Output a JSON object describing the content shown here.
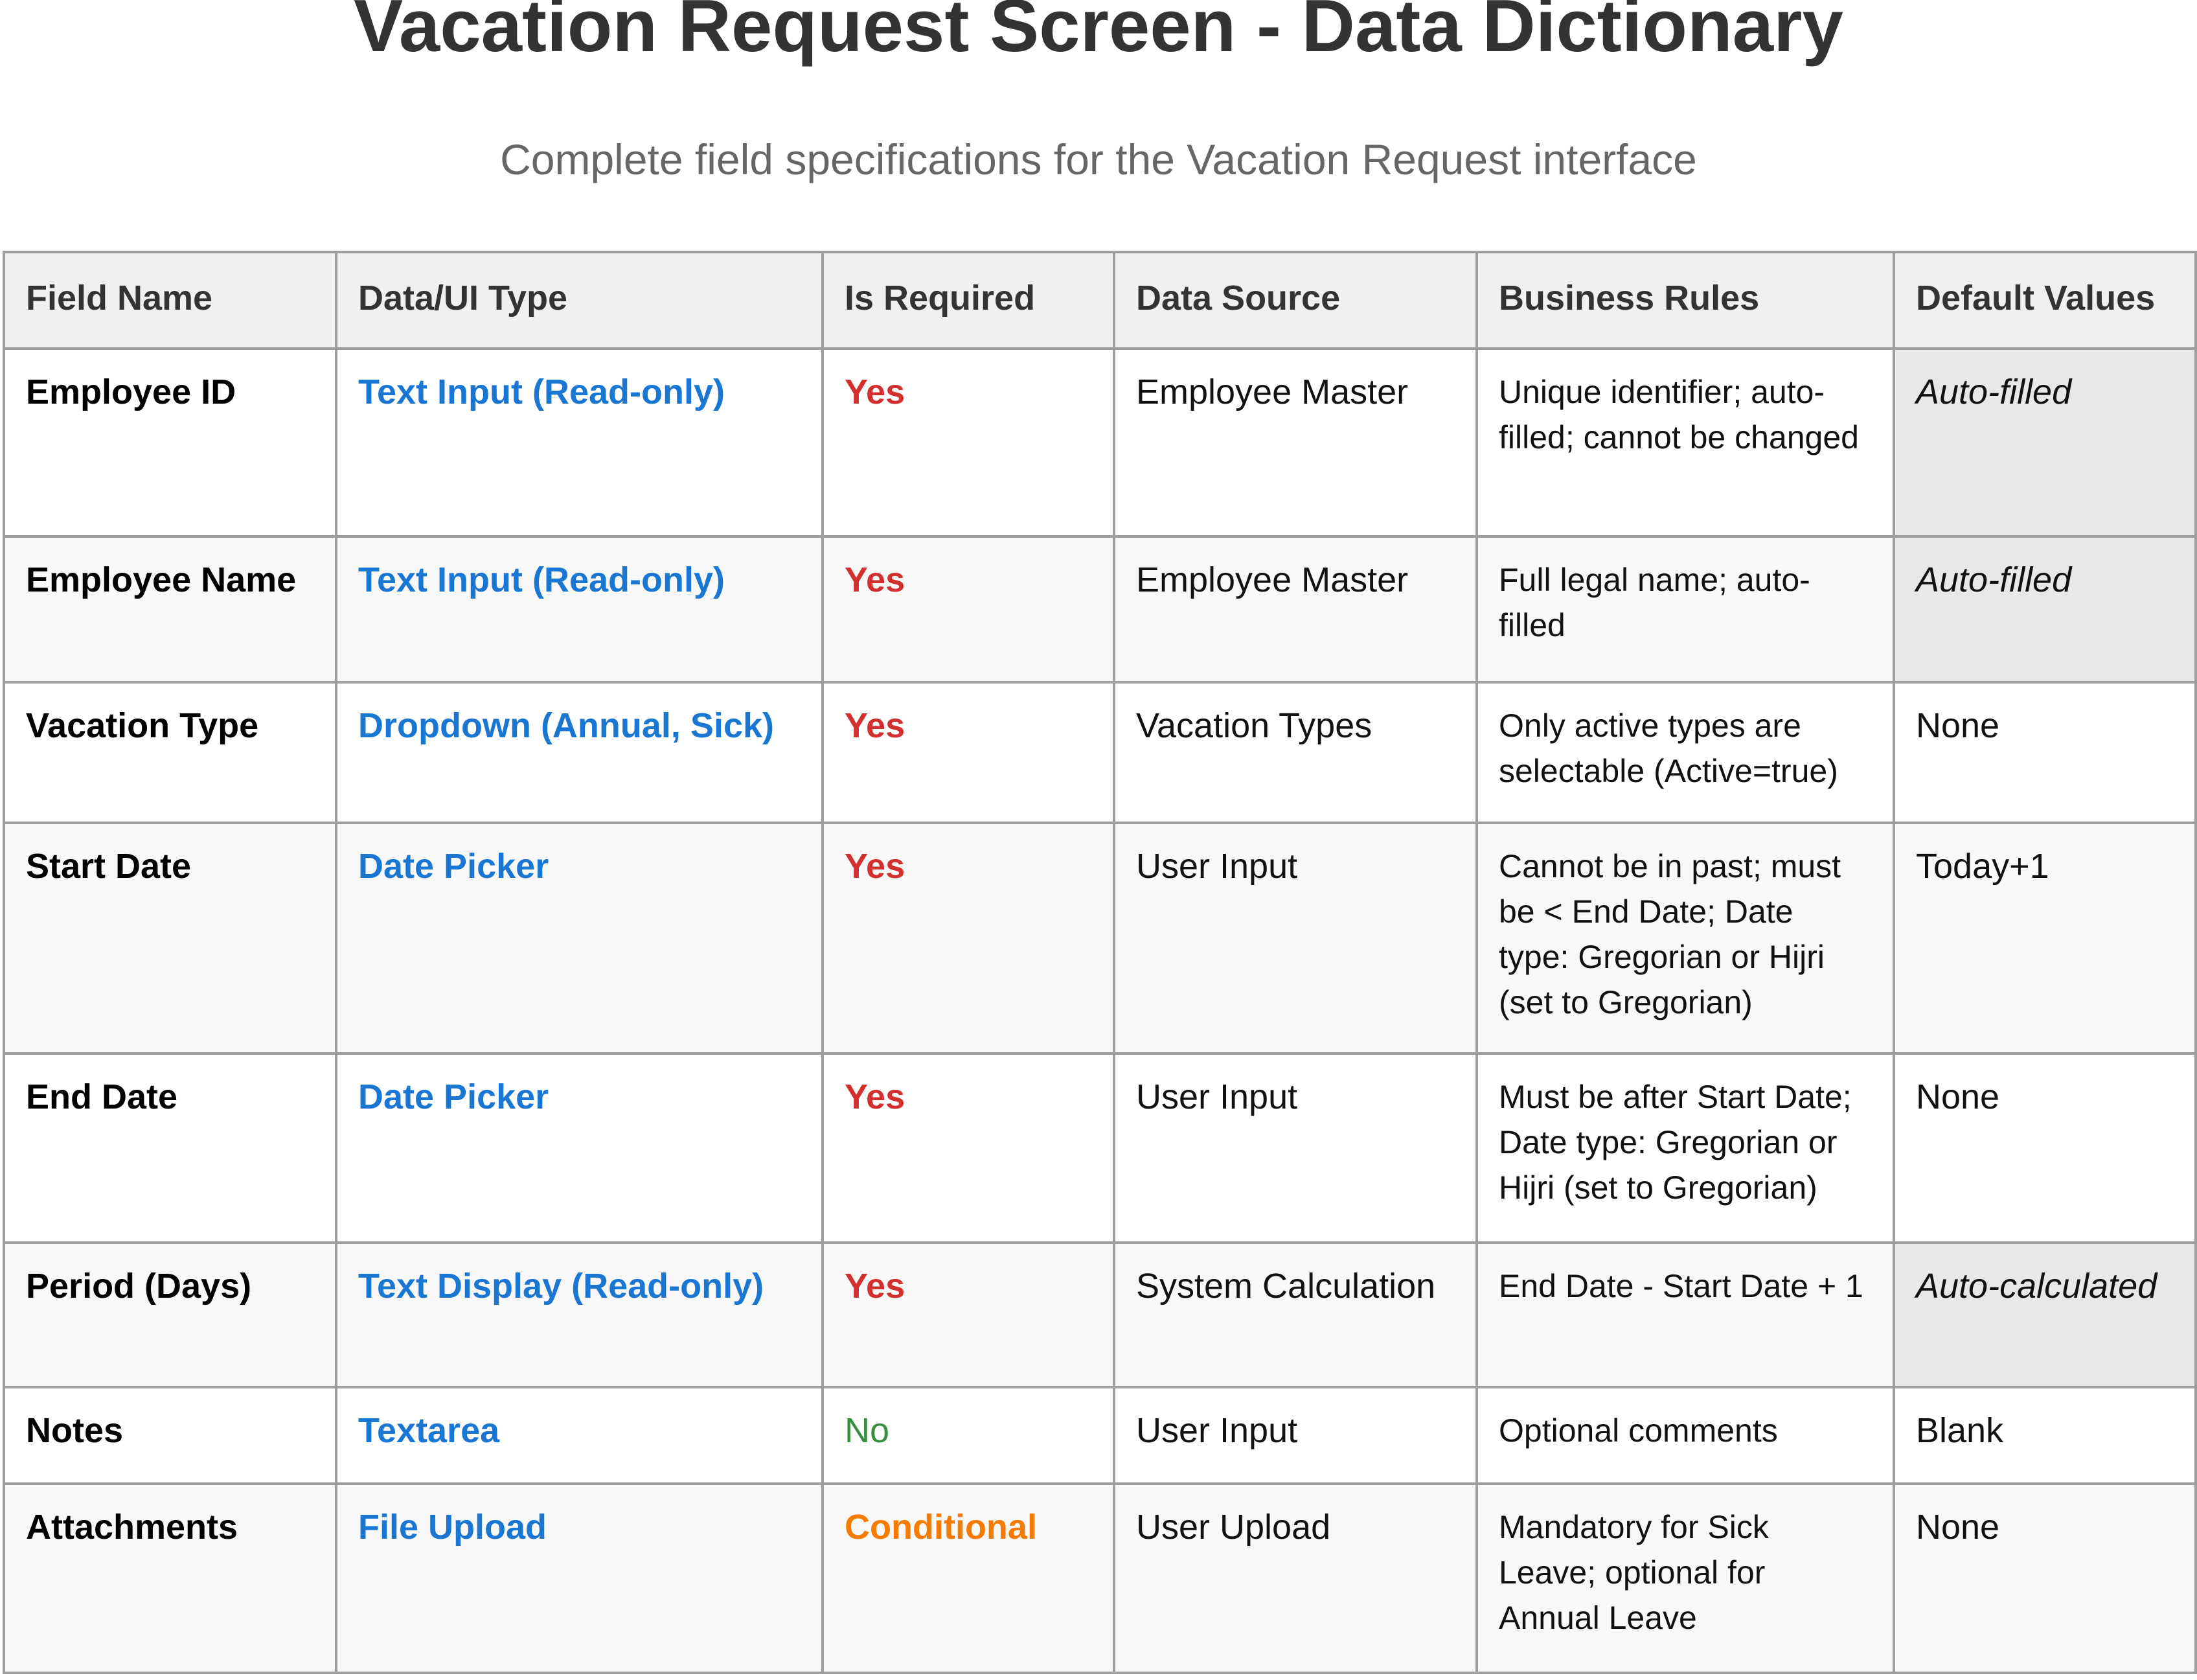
{
  "title": "Vacation Request Screen - Data Dictionary",
  "subtitle": "Complete field specifications for the Vacation Request interface",
  "colors": {
    "type": "#1976d2",
    "required_yes": "#d32f2f",
    "required_no": "#388e3c",
    "required_conditional": "#f57c00",
    "header_bg": "#f0f0f0",
    "auto_bg": "#e8e8e8"
  },
  "table": {
    "headers": [
      "Field Name",
      "Data/UI Type",
      "Is Required",
      "Data Source",
      "Business Rules",
      "Default Values"
    ],
    "rows": [
      {
        "field": "Employee ID",
        "type": "Text Input (Read-only)",
        "required": "Yes",
        "source": "Employee Master",
        "rules": "Unique identifier; auto-filled; cannot be changed",
        "default": "Auto-filled"
      },
      {
        "field": "Employee Name",
        "type": "Text Input (Read-only)",
        "required": "Yes",
        "source": "Employee Master",
        "rules": "Full legal name; auto-filled",
        "default": "Auto-filled"
      },
      {
        "field": "Vacation Type",
        "type": "Dropdown (Annual, Sick)",
        "required": "Yes",
        "source": "Vacation Types",
        "rules": "Only active types are selectable (Active=true)",
        "default": "None"
      },
      {
        "field": "Start Date",
        "type": "Date Picker",
        "required": "Yes",
        "source": "User Input",
        "rules": "Cannot be in past; must be < End Date; Date type: Gregorian or Hijri (set to Gregorian)",
        "default": "Today+1"
      },
      {
        "field": "End Date",
        "type": "Date Picker",
        "required": "Yes",
        "source": "User Input",
        "rules": "Must be after Start Date; Date type: Gregorian or Hijri (set to Gregorian)",
        "default": "None"
      },
      {
        "field": "Period (Days)",
        "type": "Text Display (Read-only)",
        "required": "Yes",
        "source": "System Calculation",
        "rules": "End Date - Start Date + 1",
        "default": "Auto-calculated"
      },
      {
        "field": "Notes",
        "type": "Textarea",
        "required": "No",
        "source": "User Input",
        "rules": "Optional comments",
        "default": "Blank"
      },
      {
        "field": "Attachments",
        "type": "File Upload",
        "required": "Conditional",
        "source": "User Upload",
        "rules": "Mandatory for Sick Leave; optional for Annual Leave",
        "default": "None"
      }
    ]
  }
}
